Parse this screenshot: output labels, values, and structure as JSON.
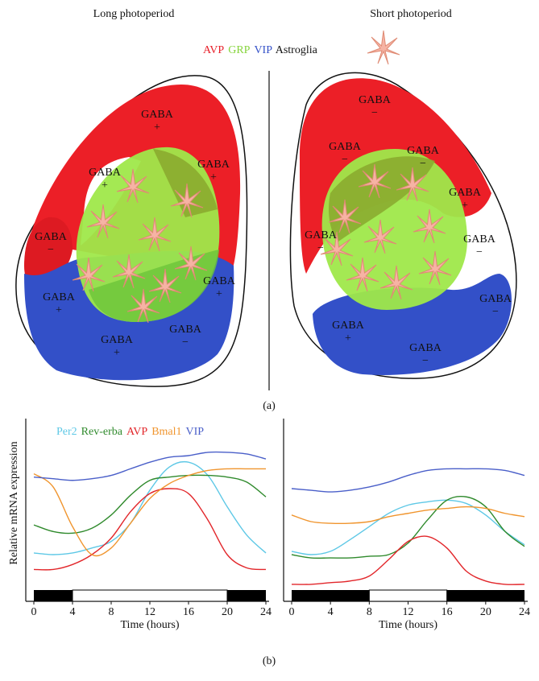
{
  "panel_a": {
    "label": "(a)",
    "long_title": "Long photoperiod",
    "short_title": "Short photoperiod",
    "legend": [
      {
        "name": "AVP",
        "color": "#e8202a"
      },
      {
        "name": "GRP",
        "color": "#86d43c"
      },
      {
        "name": "VIP",
        "color": "#3552c9"
      },
      {
        "name": "Astroglia",
        "color": "#111111"
      }
    ],
    "long_labels": [
      {
        "text": "GABA",
        "sign": "+"
      },
      {
        "text": "GABA",
        "sign": "+"
      },
      {
        "text": "GABA",
        "sign": "+"
      },
      {
        "text": "GABA",
        "sign": "−"
      },
      {
        "text": "GABA",
        "sign": "+"
      },
      {
        "text": "GABA",
        "sign": "+"
      },
      {
        "text": "GABA",
        "sign": "+"
      },
      {
        "text": "GABA",
        "sign": "−"
      }
    ],
    "short_labels": [
      {
        "text": "GABA",
        "sign": "−"
      },
      {
        "text": "GABA",
        "sign": "−"
      },
      {
        "text": "GABA",
        "sign": "−"
      },
      {
        "text": "GABA",
        "sign": "+"
      },
      {
        "text": "GABA",
        "sign": "−"
      },
      {
        "text": "GABA",
        "sign": "−"
      },
      {
        "text": "GABA",
        "sign": "−"
      },
      {
        "text": "GABA",
        "sign": "+"
      },
      {
        "text": "GABA",
        "sign": "−"
      }
    ]
  },
  "panel_b_label": "(b)",
  "chart_data": [
    {
      "type": "line",
      "y_label": "Relative mRNA expression",
      "x_label": "Time (hours)",
      "x": [
        0,
        2,
        4,
        6,
        8,
        10,
        12,
        14,
        16,
        18,
        20,
        22,
        24
      ],
      "xlim": [
        0,
        24
      ],
      "xticks": [
        0,
        4,
        8,
        12,
        16,
        20,
        24
      ],
      "ylim": [
        0,
        1
      ],
      "light_period": [
        4,
        20
      ],
      "series": [
        {
          "name": "Per2",
          "color": "#5ec8e6",
          "values": [
            0.21,
            0.2,
            0.21,
            0.24,
            0.28,
            0.39,
            0.59,
            0.73,
            0.76,
            0.68,
            0.49,
            0.32,
            0.21
          ]
        },
        {
          "name": "Rev-erba",
          "color": "#2f8a2c",
          "values": [
            0.38,
            0.34,
            0.33,
            0.36,
            0.44,
            0.56,
            0.65,
            0.67,
            0.68,
            0.68,
            0.67,
            0.64,
            0.55
          ]
        },
        {
          "name": "AVP",
          "color": "#e2262a",
          "values": [
            0.11,
            0.11,
            0.14,
            0.2,
            0.3,
            0.46,
            0.57,
            0.6,
            0.57,
            0.41,
            0.2,
            0.12,
            0.11
          ]
        },
        {
          "name": "Bmal1",
          "color": "#f0952e",
          "values": [
            0.69,
            0.61,
            0.37,
            0.2,
            0.24,
            0.39,
            0.54,
            0.63,
            0.68,
            0.71,
            0.72,
            0.72,
            0.72
          ]
        },
        {
          "name": "VIP",
          "color": "#4a5fc9",
          "values": [
            0.67,
            0.66,
            0.65,
            0.66,
            0.68,
            0.72,
            0.76,
            0.79,
            0.8,
            0.82,
            0.82,
            0.81,
            0.78
          ]
        }
      ]
    },
    {
      "type": "line",
      "x_label": "Time (hours)",
      "x": [
        0,
        2,
        4,
        6,
        8,
        10,
        12,
        14,
        16,
        18,
        20,
        22,
        24
      ],
      "xlim": [
        0,
        24
      ],
      "xticks": [
        0,
        4,
        8,
        12,
        16,
        20,
        24
      ],
      "ylim": [
        0,
        1
      ],
      "light_period": [
        8,
        16
      ],
      "series": [
        {
          "color": "#5ec8e6",
          "values": [
            0.22,
            0.2,
            0.22,
            0.29,
            0.37,
            0.45,
            0.5,
            0.52,
            0.53,
            0.51,
            0.44,
            0.34,
            0.26
          ]
        },
        {
          "color": "#2f8a2c",
          "values": [
            0.2,
            0.18,
            0.18,
            0.18,
            0.19,
            0.2,
            0.27,
            0.41,
            0.53,
            0.55,
            0.49,
            0.34,
            0.25
          ]
        },
        {
          "color": "#e2262a",
          "values": [
            0.02,
            0.02,
            0.03,
            0.04,
            0.07,
            0.17,
            0.28,
            0.31,
            0.24,
            0.1,
            0.04,
            0.02,
            0.02
          ]
        },
        {
          "color": "#f0952e",
          "values": [
            0.44,
            0.4,
            0.39,
            0.39,
            0.4,
            0.43,
            0.45,
            0.47,
            0.48,
            0.49,
            0.48,
            0.45,
            0.43
          ]
        },
        {
          "color": "#4a5fc9",
          "values": [
            0.6,
            0.59,
            0.58,
            0.59,
            0.61,
            0.64,
            0.68,
            0.71,
            0.72,
            0.72,
            0.72,
            0.71,
            0.68
          ]
        }
      ]
    }
  ]
}
